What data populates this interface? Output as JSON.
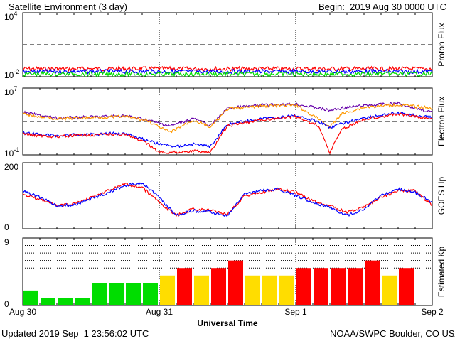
{
  "header": {
    "title": "Satellite Environment (3 day)",
    "begin": "Begin:  2019 Aug 30 0000 UTC"
  },
  "footer": {
    "updated": "Updated 2019 Sep  1 23:56:02 UTC",
    "source": "NOAA/SWPC Boulder, CO USA"
  },
  "xaxis": {
    "title": "Universal Time",
    "ticks": [
      "Aug 30",
      "Aug 31",
      "Sep 1",
      "Sep 2"
    ]
  },
  "colors": {
    "red": "#ff0000",
    "blue": "#0000ff",
    "green": "#00dd00",
    "orange": "#ff9900",
    "purple": "#6600aa",
    "yellow": "#ffdd00"
  },
  "chart_data": [
    {
      "type": "line",
      "panel": "proton",
      "ylabel": "Proton Flux",
      "ytick_labels": [
        {
          "base": "10",
          "exp": "4"
        },
        {
          "base": "10",
          "exp": "-2"
        }
      ],
      "ylim": [
        0.01,
        10000
      ],
      "yscale": "log",
      "xlim": [
        "2019-08-30 00:00",
        "2019-09-02 00:00"
      ],
      "threshold": 10,
      "series": [
        {
          "color": "red",
          "x": [
            "2019-08-30 00:00",
            "2019-08-31 00:00",
            "2019-09-01 00:00",
            "2019-09-02 00:00"
          ],
          "values": [
            0.055,
            0.055,
            0.055,
            0.055
          ]
        },
        {
          "color": "blue",
          "x": [
            "2019-08-30 00:00",
            "2019-08-31 00:00",
            "2019-09-01 00:00",
            "2019-09-02 00:00"
          ],
          "values": [
            0.03,
            0.03,
            0.03,
            0.03
          ]
        },
        {
          "color": "green",
          "x": [
            "2019-08-30 00:00",
            "2019-08-31 00:00",
            "2019-09-01 00:00",
            "2019-09-02 00:00"
          ],
          "values": [
            0.018,
            0.018,
            0.018,
            0.018
          ]
        }
      ]
    },
    {
      "type": "line",
      "panel": "electron",
      "ylabel": "Electron Flux",
      "ytick_labels": [
        {
          "base": "10",
          "exp": "7"
        },
        {
          "base": "10",
          "exp": "-1"
        }
      ],
      "ylim": [
        0.1,
        10000000
      ],
      "yscale": "log",
      "xlim": [
        "2019-08-30 00:00",
        "2019-09-02 00:00"
      ],
      "threshold": 1000,
      "series": [
        {
          "color": "purple",
          "x": [
            "2019-08-30 00:00",
            "2019-08-30 06:00",
            "2019-08-30 12:00",
            "2019-08-30 18:00",
            "2019-08-30 22:00",
            "2019-08-31 00:00",
            "2019-08-31 02:00",
            "2019-08-31 04:00",
            "2019-08-31 06:00",
            "2019-08-31 09:00",
            "2019-08-31 12:00",
            "2019-08-31 18:00",
            "2019-09-01 00:00",
            "2019-09-01 04:00",
            "2019-09-01 06:00",
            "2019-09-01 08:00",
            "2019-09-01 12:00",
            "2019-09-01 18:00",
            "2019-09-02 00:00"
          ],
          "values": [
            12000,
            2500,
            3500,
            5000,
            1500,
            600,
            300,
            800,
            2500,
            300,
            40000,
            90000,
            120000,
            40000,
            20000,
            40000,
            80000,
            150000,
            12000
          ]
        },
        {
          "color": "orange",
          "x": [
            "2019-08-30 00:00",
            "2019-08-30 06:00",
            "2019-08-30 12:00",
            "2019-08-30 18:00",
            "2019-08-30 22:00",
            "2019-08-31 00:00",
            "2019-08-31 02:00",
            "2019-08-31 04:00",
            "2019-08-31 06:00",
            "2019-08-31 09:00",
            "2019-08-31 12:00",
            "2019-08-31 18:00",
            "2019-09-01 00:00",
            "2019-09-01 04:00",
            "2019-09-01 06:00",
            "2019-09-01 08:00",
            "2019-09-01 12:00",
            "2019-09-01 18:00",
            "2019-09-02 00:00"
          ],
          "values": [
            8000,
            2000,
            3000,
            4000,
            1200,
            200,
            50,
            300,
            1500,
            200,
            30000,
            70000,
            90000,
            2000,
            200,
            8000,
            50000,
            100000,
            40000
          ]
        },
        {
          "color": "blue",
          "x": [
            "2019-08-30 00:00",
            "2019-08-30 06:00",
            "2019-08-30 12:00",
            "2019-08-30 18:00",
            "2019-08-30 22:00",
            "2019-08-31 00:00",
            "2019-08-31 03:00",
            "2019-08-31 06:00",
            "2019-08-31 09:00",
            "2019-08-31 12:00",
            "2019-08-31 18:00",
            "2019-09-01 00:00",
            "2019-09-01 04:00",
            "2019-09-01 06:00",
            "2019-09-01 08:00",
            "2019-09-01 12:00",
            "2019-09-01 18:00",
            "2019-09-02 00:00"
          ],
          "values": [
            40,
            20,
            30,
            40,
            5,
            2,
            1,
            2,
            1,
            500,
            2000,
            5000,
            1000,
            200,
            500,
            3000,
            10000,
            3000
          ]
        },
        {
          "color": "red",
          "x": [
            "2019-08-30 00:00",
            "2019-08-30 06:00",
            "2019-08-30 12:00",
            "2019-08-30 18:00",
            "2019-08-30 22:00",
            "2019-08-31 00:00",
            "2019-08-31 03:00",
            "2019-08-31 06:00",
            "2019-08-31 09:00",
            "2019-08-31 12:00",
            "2019-08-31 18:00",
            "2019-09-01 00:00",
            "2019-09-01 04:00",
            "2019-09-01 06:00",
            "2019-09-01 08:00",
            "2019-09-01 12:00",
            "2019-09-01 18:00",
            "2019-09-02 00:00"
          ],
          "values": [
            30,
            15,
            25,
            30,
            2,
            0.2,
            0.2,
            0.3,
            0.2,
            300,
            1500,
            4000,
            300,
            0.2,
            100,
            2000,
            8000,
            2000
          ]
        }
      ]
    },
    {
      "type": "line",
      "panel": "hp",
      "ylabel": "GOES Hp",
      "ytick_labels": [
        "200",
        "0"
      ],
      "ylim": [
        0,
        200
      ],
      "xlim": [
        "2019-08-30 00:00",
        "2019-09-02 00:00"
      ],
      "series": [
        {
          "color": "red",
          "x": [
            "2019-08-30 00:00",
            "2019-08-30 03:00",
            "2019-08-30 06:00",
            "2019-08-30 09:00",
            "2019-08-30 12:00",
            "2019-08-30 15:00",
            "2019-08-30 18:00",
            "2019-08-30 21:00",
            "2019-08-31 00:00",
            "2019-08-31 03:00",
            "2019-08-31 06:00",
            "2019-08-31 09:00",
            "2019-08-31 12:00",
            "2019-08-31 15:00",
            "2019-08-31 18:00",
            "2019-08-31 21:00",
            "2019-09-01 00:00",
            "2019-09-01 03:00",
            "2019-09-01 06:00",
            "2019-09-01 09:00",
            "2019-09-01 12:00",
            "2019-09-01 15:00",
            "2019-09-01 18:00",
            "2019-09-01 21:00",
            "2019-09-02 00:00"
          ],
          "values": [
            105,
            90,
            70,
            75,
            95,
            115,
            135,
            125,
            80,
            40,
            60,
            55,
            45,
            100,
            110,
            120,
            110,
            85,
            70,
            50,
            65,
            95,
            115,
            115,
            70
          ]
        },
        {
          "color": "blue",
          "x": [
            "2019-08-30 00:00",
            "2019-08-30 03:00",
            "2019-08-30 06:00",
            "2019-08-30 09:00",
            "2019-08-30 12:00",
            "2019-08-30 15:00",
            "2019-08-30 18:00",
            "2019-08-30 21:00",
            "2019-08-31 00:00",
            "2019-08-31 03:00",
            "2019-08-31 06:00",
            "2019-08-31 09:00",
            "2019-08-31 12:00",
            "2019-08-31 15:00",
            "2019-08-31 18:00",
            "2019-08-31 21:00",
            "2019-09-01 00:00",
            "2019-09-01 03:00",
            "2019-09-01 06:00",
            "2019-09-01 09:00",
            "2019-09-01 12:00",
            "2019-09-01 15:00",
            "2019-09-01 18:00",
            "2019-09-01 21:00",
            "2019-09-02 00:00"
          ],
          "values": [
            115,
            95,
            70,
            72,
            90,
            110,
            130,
            140,
            95,
            40,
            55,
            50,
            40,
            105,
            115,
            120,
            100,
            80,
            65,
            40,
            60,
            100,
            120,
            110,
            80
          ]
        }
      ]
    },
    {
      "type": "bar",
      "panel": "kp",
      "ylabel": "Estimated Kp",
      "ytick_labels": [
        "9",
        "0"
      ],
      "ylim": [
        0,
        9
      ],
      "gridlines": [
        5,
        6,
        7,
        8,
        9
      ],
      "categories": [
        "2019-08-30 00:00",
        "2019-08-30 03:00",
        "2019-08-30 06:00",
        "2019-08-30 09:00",
        "2019-08-30 12:00",
        "2019-08-30 15:00",
        "2019-08-30 18:00",
        "2019-08-30 21:00",
        "2019-08-31 00:00",
        "2019-08-31 03:00",
        "2019-08-31 06:00",
        "2019-08-31 09:00",
        "2019-08-31 12:00",
        "2019-08-31 15:00",
        "2019-08-31 18:00",
        "2019-08-31 21:00",
        "2019-09-01 00:00",
        "2019-09-01 03:00",
        "2019-09-01 06:00",
        "2019-09-01 09:00",
        "2019-09-01 12:00",
        "2019-09-01 15:00",
        "2019-09-01 18:00",
        "2019-09-01 21:00"
      ],
      "values": [
        2,
        1,
        1,
        1,
        3,
        3,
        3,
        3,
        4,
        5,
        4,
        5,
        6,
        4,
        4,
        4,
        5,
        5,
        5,
        5,
        6,
        4,
        5,
        0
      ],
      "colors": [
        "green",
        "green",
        "green",
        "green",
        "green",
        "green",
        "green",
        "green",
        "yellow",
        "red",
        "yellow",
        "red",
        "red",
        "yellow",
        "yellow",
        "yellow",
        "red",
        "red",
        "red",
        "red",
        "red",
        "yellow",
        "red",
        "red"
      ]
    }
  ]
}
